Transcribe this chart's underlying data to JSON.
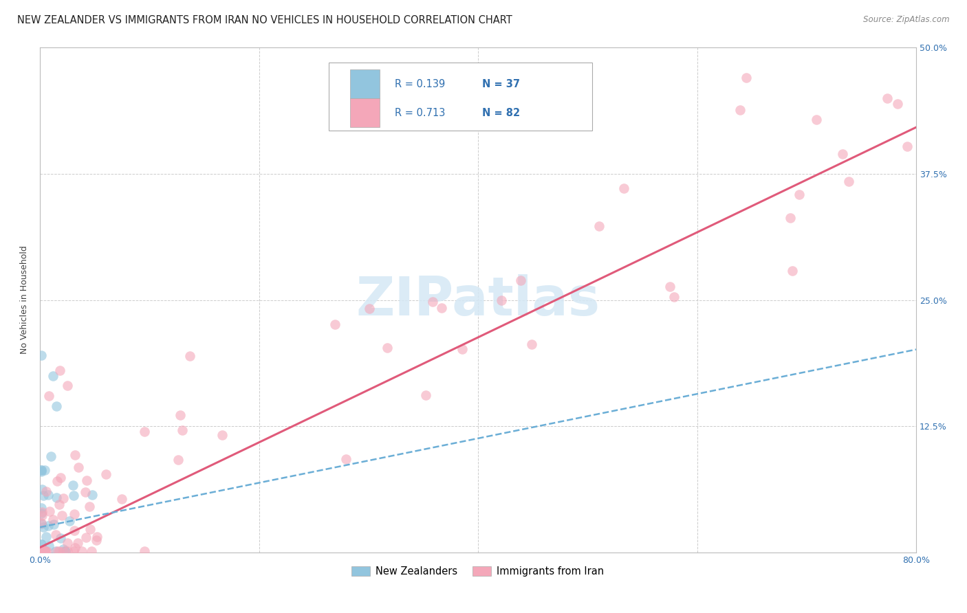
{
  "title": "NEW ZEALANDER VS IMMIGRANTS FROM IRAN NO VEHICLES IN HOUSEHOLD CORRELATION CHART",
  "source": "Source: ZipAtlas.com",
  "ylabel_label": "No Vehicles in Household",
  "xlim": [
    0.0,
    0.8
  ],
  "ylim": [
    0.0,
    0.5
  ],
  "x_ticks": [
    0.0,
    0.2,
    0.4,
    0.6,
    0.8
  ],
  "x_tick_labels_show": [
    "0.0%",
    "",
    "",
    "",
    "80.0%"
  ],
  "y_ticks": [
    0.0,
    0.125,
    0.25,
    0.375,
    0.5
  ],
  "y_tick_labels_show": [
    "",
    "12.5%",
    "25.0%",
    "37.5%",
    "50.0%"
  ],
  "color_nz": "#92c5de",
  "color_iran": "#f4a7b9",
  "color_nz_line": "#6baed6",
  "color_iran_line": "#e05a7a",
  "legend_color": "#3070b0",
  "watermark_text": "ZIPatlas",
  "watermark_color": "#d5e8f5",
  "grid_color": "#cccccc",
  "background_color": "#ffffff",
  "title_fontsize": 10.5,
  "tick_fontsize": 9,
  "ylabel_fontsize": 9,
  "source_fontsize": 8.5,
  "legend_fontsize": 10.5,
  "nz_scatter_seed": 42,
  "iran_scatter_seed": 99,
  "nz_n": 37,
  "iran_n": 82,
  "nz_regression_slope": 0.22,
  "nz_regression_intercept": 0.025,
  "iran_regression_slope": 0.52,
  "iran_regression_intercept": 0.005
}
